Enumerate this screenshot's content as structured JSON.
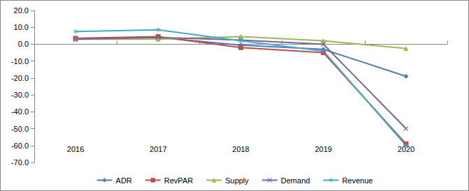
{
  "chart_data": {
    "type": "line",
    "categories": [
      "2016",
      "2017",
      "2018",
      "2019",
      "2020"
    ],
    "series": [
      {
        "name": "ADR",
        "color": "#4a7ebb",
        "marker": "diamond",
        "values": [
          3.5,
          4.0,
          -0.5,
          -3.0,
          -19.0
        ]
      },
      {
        "name": "RevPAR",
        "color": "#be4b48",
        "marker": "square",
        "values": [
          3.5,
          4.5,
          -2.0,
          -5.0,
          -59.0
        ]
      },
      {
        "name": "Supply",
        "color": "#98b954",
        "marker": "triangle",
        "values": [
          3.0,
          3.0,
          4.5,
          2.0,
          -2.5
        ]
      },
      {
        "name": "Demand",
        "color": "#7d60a0",
        "marker": "x",
        "values": [
          3.0,
          4.0,
          2.5,
          0.0,
          -50.0
        ]
      },
      {
        "name": "Revenue",
        "color": "#46aac5",
        "marker": "star",
        "values": [
          7.5,
          8.5,
          2.0,
          -4.0,
          -60.0
        ]
      }
    ],
    "ylim": [
      -70,
      20
    ],
    "yticks": [
      {
        "value": -70,
        "label": "-70.0"
      },
      {
        "value": -60,
        "label": "-60.0"
      },
      {
        "value": -50,
        "label": "-50.0"
      },
      {
        "value": -40,
        "label": "-40.0"
      },
      {
        "value": -30,
        "label": "-30.0"
      },
      {
        "value": -20,
        "label": "-20.0"
      },
      {
        "value": -10,
        "label": "-10.0"
      },
      {
        "value": 0,
        "label": "0.0"
      },
      {
        "value": 10,
        "label": "10.0"
      },
      {
        "value": 20,
        "label": "20.0"
      }
    ],
    "grid": false,
    "legend": "bottom"
  }
}
